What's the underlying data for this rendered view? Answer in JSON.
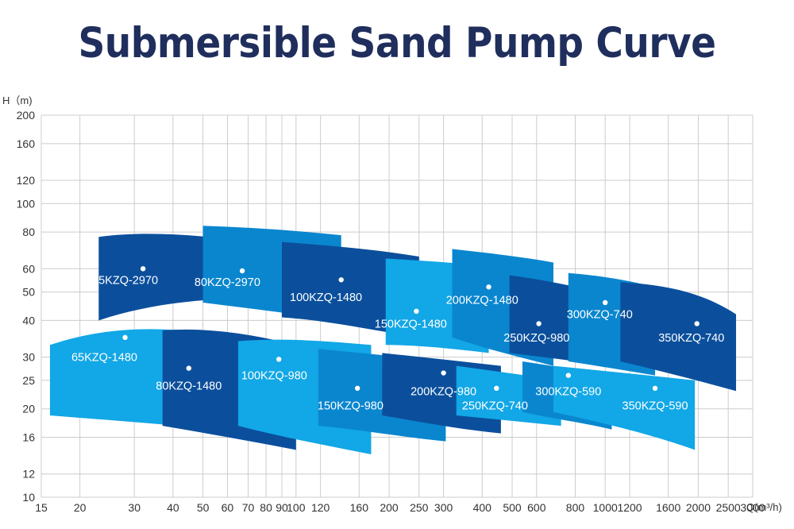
{
  "title": "Submersible Sand Pump Curve",
  "chart_data": {
    "type": "area",
    "title": "Submersible Sand Pump Curve",
    "xlabel": "Q(m³/h)",
    "ylabel": "H（m)",
    "x_scale": "log",
    "y_scale": "log",
    "xlim": [
      15,
      3000
    ],
    "ylim": [
      10,
      200
    ],
    "grid": true,
    "x_ticks": [
      "15",
      "20",
      "30",
      "40",
      "50",
      "60",
      "70",
      "80",
      "90",
      "100",
      "120",
      "160",
      "200",
      "250",
      "300",
      "400",
      "500",
      "600",
      "800",
      "1000",
      "1200",
      "1600",
      "2000",
      "2500",
      "3000"
    ],
    "y_ticks": [
      "10",
      "12",
      "16",
      "20",
      "25",
      "30",
      "40",
      "50",
      "60",
      "80",
      "100",
      "120",
      "160",
      "200"
    ],
    "colors": {
      "dark": "#0b4f9c",
      "medium": "#0a86cf",
      "light": "#12a7e6",
      "grid": "#cccccc",
      "title": "#1f2e5c"
    },
    "series": [
      {
        "name": "65KZQ-2970",
        "color": "dark",
        "q_range": [
          23,
          52
        ],
        "h_top": [
          77,
          80,
          79,
          77
        ],
        "h_bottom": [
          40,
          44,
          46,
          47
        ],
        "point": [
          32,
          60
        ]
      },
      {
        "name": "80KZQ-2970",
        "color": "medium",
        "q_range": [
          50,
          140
        ],
        "h_top": [
          84,
          83,
          81,
          78
        ],
        "h_bottom": [
          46,
          44,
          42,
          40
        ],
        "point": [
          67,
          59
        ]
      },
      {
        "name": "100KZQ-1480",
        "color": "dark",
        "q_range": [
          90,
          250
        ],
        "h_top": [
          74,
          72,
          70,
          66
        ],
        "h_bottom": [
          41,
          40,
          37,
          35
        ],
        "point": [
          140,
          55
        ]
      },
      {
        "name": "150KZQ-1480",
        "color": "light",
        "q_range": [
          195,
          420
        ],
        "h_top": [
          65,
          64,
          63,
          61
        ],
        "h_bottom": [
          33,
          33,
          32,
          31
        ],
        "point": [
          245,
          43
        ]
      },
      {
        "name": "200KZQ-1480",
        "color": "medium",
        "q_range": [
          320,
          680
        ],
        "h_top": [
          70,
          68,
          66,
          63
        ],
        "h_bottom": [
          35,
          32,
          30,
          28
        ],
        "point": [
          420,
          52
        ]
      },
      {
        "name": "250KZQ-980",
        "color": "dark",
        "q_range": [
          490,
          1050
        ],
        "h_top": [
          57,
          55,
          52,
          49
        ],
        "h_bottom": [
          31,
          30,
          29,
          28
        ],
        "point": [
          610,
          39
        ]
      },
      {
        "name": "300KZQ-740",
        "color": "medium",
        "q_range": [
          760,
          1450
        ],
        "h_top": [
          58,
          57,
          55,
          52
        ],
        "h_bottom": [
          29,
          28,
          27,
          26
        ],
        "point": [
          1000,
          46
        ]
      },
      {
        "name": "350KZQ-740",
        "color": "dark",
        "q_range": [
          1120,
          2650
        ],
        "h_top": [
          54,
          53,
          51,
          42
        ],
        "h_bottom": [
          29,
          27,
          25,
          23
        ],
        "point": [
          1980,
          39
        ]
      },
      {
        "name": "65KZQ-1480",
        "color": "light",
        "q_range": [
          16,
          42
        ],
        "h_top": [
          33,
          37,
          38,
          37
        ],
        "h_bottom": [
          19,
          18.5,
          18,
          17.5
        ],
        "point": [
          28,
          35
        ]
      },
      {
        "name": "80KZQ-1480",
        "color": "dark",
        "q_range": [
          37,
          100
        ],
        "h_top": [
          37,
          38,
          36,
          33
        ],
        "h_bottom": [
          17.5,
          16.5,
          15.5,
          14.5
        ],
        "point": [
          45,
          27.5
        ]
      },
      {
        "name": "100KZQ-980",
        "color": "light",
        "q_range": [
          65,
          175
        ],
        "h_top": [
          34,
          35,
          34,
          33
        ],
        "h_bottom": [
          17.5,
          16,
          15,
          14
        ],
        "point": [
          88,
          29.5
        ]
      },
      {
        "name": "150KZQ-980",
        "color": "medium",
        "q_range": [
          118,
          305
        ],
        "h_top": [
          32,
          31,
          30,
          29
        ],
        "h_bottom": [
          17.5,
          17,
          16,
          15.5
        ],
        "point": [
          158,
          23.5
        ]
      },
      {
        "name": "200KZQ-980",
        "color": "dark",
        "q_range": [
          190,
          460
        ],
        "h_top": [
          31,
          30,
          29,
          28
        ],
        "h_bottom": [
          19,
          18,
          17,
          16.5
        ],
        "point": [
          300,
          26.5
        ]
      },
      {
        "name": "250KZQ-740",
        "color": "light",
        "q_range": [
          330,
          720
        ],
        "h_top": [
          28,
          27,
          26,
          25
        ],
        "h_bottom": [
          19,
          18.5,
          18,
          17.5
        ],
        "point": [
          445,
          23.5
        ]
      },
      {
        "name": "300KZQ-590",
        "color": "medium",
        "q_range": [
          540,
          1050
        ],
        "h_top": [
          29,
          28,
          27,
          26
        ],
        "h_bottom": [
          19.5,
          18.5,
          18,
          17
        ],
        "point": [
          760,
          26
        ]
      },
      {
        "name": "350KZQ-590",
        "color": "light",
        "q_range": [
          680,
          1950
        ],
        "h_top": [
          28,
          27,
          26,
          25
        ],
        "h_bottom": [
          19.5,
          18,
          16.5,
          14.5
        ],
        "point": [
          1450,
          23.5
        ]
      }
    ],
    "label_positions": {
      "65KZQ-2970": [
        28,
        55
      ],
      "80KZQ-2970": [
        60,
        54
      ],
      "100KZQ-1480": [
        125,
        48
      ],
      "150KZQ-1480": [
        235,
        39
      ],
      "200KZQ-1480": [
        400,
        47
      ],
      "250KZQ-980": [
        600,
        35
      ],
      "300KZQ-740": [
        960,
        42
      ],
      "350KZQ-740": [
        1900,
        35
      ],
      "65KZQ-1480": [
        24,
        30
      ],
      "80KZQ-1480": [
        45,
        24
      ],
      "100KZQ-980": [
        85,
        26
      ],
      "150KZQ-980": [
        150,
        20.5
      ],
      "200KZQ-980": [
        300,
        23
      ],
      "250KZQ-740": [
        440,
        20.5
      ],
      "300KZQ-590": [
        760,
        23
      ],
      "350KZQ-590": [
        1450,
        20.5
      ]
    }
  }
}
